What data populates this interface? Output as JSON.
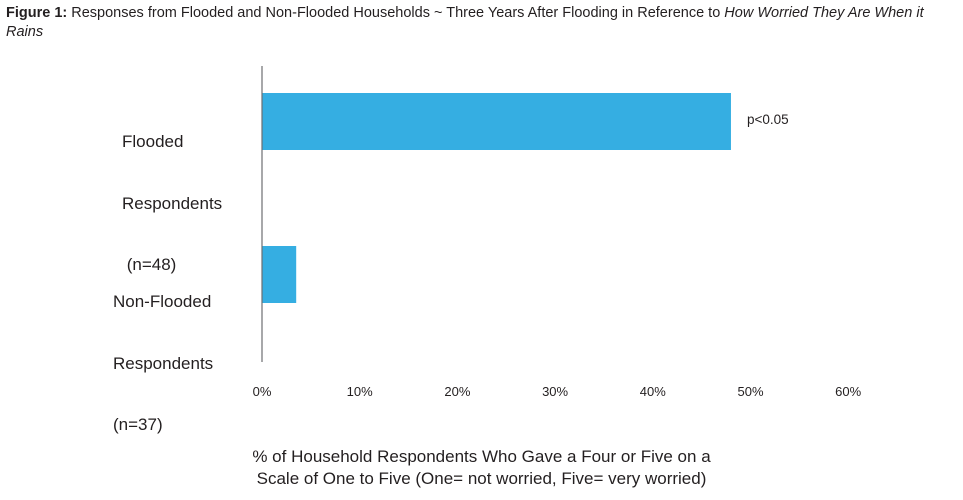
{
  "figure": {
    "label": "Figure 1:",
    "title_plain": " Responses from Flooded and Non-Flooded Households ~ Three Years After Flooding in Reference to ",
    "title_italic": "How Worried They Are When it Rains"
  },
  "chart_data": {
    "type": "bar",
    "orientation": "horizontal",
    "categories": [
      "Flooded Respondents (n=48)",
      "Non-Flooded Respondents (n=37)"
    ],
    "category_lines": [
      [
        "Flooded",
        "Respondents",
        " (n=48)"
      ],
      [
        "Non-Flooded",
        "Respondents",
        "(n=37)"
      ]
    ],
    "values": [
      48,
      3.5
    ],
    "xlim": [
      0,
      60
    ],
    "xticks": [
      0,
      10,
      20,
      30,
      40,
      50,
      60
    ],
    "xtick_labels": [
      "0%",
      "10%",
      "20%",
      "30%",
      "40%",
      "50%",
      "60%"
    ],
    "xlabel_lines": [
      "% of Household Respondents Who Gave a Four or Five on a",
      "Scale of One to Five (One= not worried, Five= very worried)"
    ],
    "annotations": [
      {
        "category": "Flooded Respondents (n=48)",
        "text": "p<0.05"
      }
    ],
    "bar_color": "#35aee2",
    "axis_color": "#6d6e71",
    "grid": false,
    "legend": "none"
  }
}
